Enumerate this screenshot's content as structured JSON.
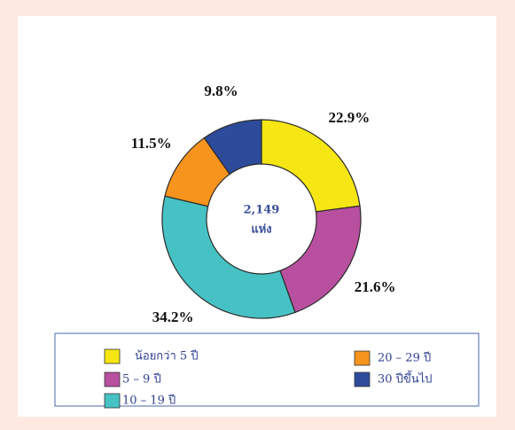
{
  "chart_data": {
    "type": "donut",
    "categories": [
      "น้อยกว่า 5 ปี",
      "5 – 9 ปี",
      "10 – 19 ปี",
      "20 – 29 ปี",
      "30 ปีขึ้นไป"
    ],
    "values": [
      22.9,
      21.6,
      34.2,
      11.5,
      9.8
    ],
    "value_labels": [
      "22.9%",
      "21.6%",
      "34.2%",
      "11.5%",
      "9.8%"
    ],
    "colors": [
      "#f5e614",
      "#b84f9f",
      "#47c2c4",
      "#f7941d",
      "#2e4b9b"
    ],
    "center_text": [
      "2,149",
      "แห่ง"
    ],
    "legend": "bottom"
  }
}
